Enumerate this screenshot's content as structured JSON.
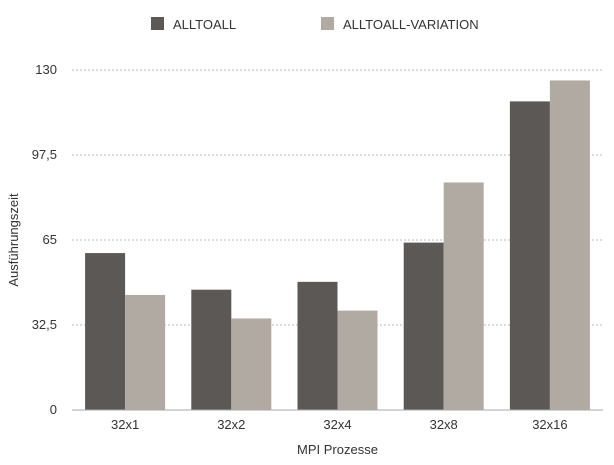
{
  "chart_data": {
    "type": "bar",
    "title": "",
    "xlabel": "MPI Prozesse",
    "ylabel": "Ausführungszeit",
    "categories": [
      "32x1",
      "32x2",
      "32x4",
      "32x8",
      "32x16"
    ],
    "series": [
      {
        "name": "ALLTOALL",
        "color": "#5c5855",
        "values": [
          60,
          46,
          49,
          64,
          118
        ]
      },
      {
        "name": "ALLTOALL-VARIATION",
        "color": "#b0aaa2",
        "values": [
          44,
          35,
          38,
          87,
          126
        ]
      }
    ],
    "ylim": [
      0,
      130
    ],
    "yticks": [
      0,
      32.5,
      65,
      97.5,
      130
    ],
    "ytick_labels": [
      "0",
      "32,5",
      "65",
      "97,5",
      "130"
    ],
    "grid": true,
    "legend_position": "top"
  }
}
